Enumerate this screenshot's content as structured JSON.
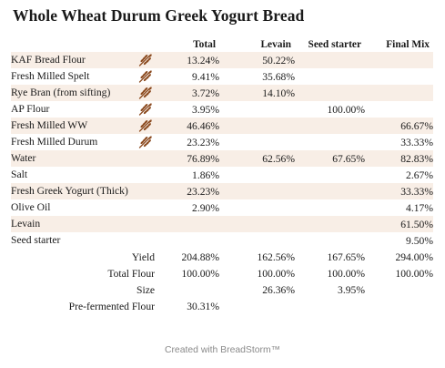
{
  "title": "Whole Wheat Durum Greek Yogurt Bread",
  "columns": [
    "Total",
    "Levain",
    "Seed starter",
    "Final Mix"
  ],
  "ingredients": [
    {
      "name": "KAF Bread Flour",
      "flour_icon": true,
      "total": "13.24%",
      "levain": "50.22%",
      "seed": "",
      "final": ""
    },
    {
      "name": "Fresh Milled Spelt",
      "flour_icon": true,
      "total": "9.41%",
      "levain": "35.68%",
      "seed": "",
      "final": ""
    },
    {
      "name": "Rye Bran (from sifting)",
      "flour_icon": true,
      "total": "3.72%",
      "levain": "14.10%",
      "seed": "",
      "final": ""
    },
    {
      "name": "AP Flour",
      "flour_icon": true,
      "total": "3.95%",
      "levain": "",
      "seed": "100.00%",
      "final": ""
    },
    {
      "name": "Fresh Milled WW",
      "flour_icon": true,
      "total": "46.46%",
      "levain": "",
      "seed": "",
      "final": "66.67%"
    },
    {
      "name": "Fresh Milled Durum",
      "flour_icon": true,
      "total": "23.23%",
      "levain": "",
      "seed": "",
      "final": "33.33%"
    },
    {
      "name": "Water",
      "flour_icon": false,
      "total": "76.89%",
      "levain": "62.56%",
      "seed": "67.65%",
      "final": "82.83%"
    },
    {
      "name": "Salt",
      "flour_icon": false,
      "total": "1.86%",
      "levain": "",
      "seed": "",
      "final": "2.67%"
    },
    {
      "name": "Fresh Greek Yogurt (Thick)",
      "flour_icon": false,
      "total": "23.23%",
      "levain": "",
      "seed": "",
      "final": "33.33%"
    },
    {
      "name": "Olive Oil",
      "flour_icon": false,
      "total": "2.90%",
      "levain": "",
      "seed": "",
      "final": "4.17%"
    },
    {
      "name": "Levain",
      "flour_icon": false,
      "total": "",
      "levain": "",
      "seed": "",
      "final": "61.50%"
    },
    {
      "name": "Seed starter",
      "flour_icon": false,
      "total": "",
      "levain": "",
      "seed": "",
      "final": "9.50%"
    }
  ],
  "summary": [
    {
      "label": "Yield",
      "total": "204.88%",
      "levain": "162.56%",
      "seed": "167.65%",
      "final": "294.00%"
    },
    {
      "label": "Total Flour",
      "total": "100.00%",
      "levain": "100.00%",
      "seed": "100.00%",
      "final": "100.00%"
    },
    {
      "label": "Size",
      "total": "",
      "levain": "26.36%",
      "seed": "3.95%",
      "final": ""
    },
    {
      "label": "Pre-fermented Flour",
      "total": "30.31%",
      "levain": "",
      "seed": "",
      "final": ""
    }
  ],
  "row_shade_color": "#f8eee6",
  "icon": "wheat-icon",
  "icon_color": "#8b4a1f",
  "footer": "Created with BreadStorm™"
}
